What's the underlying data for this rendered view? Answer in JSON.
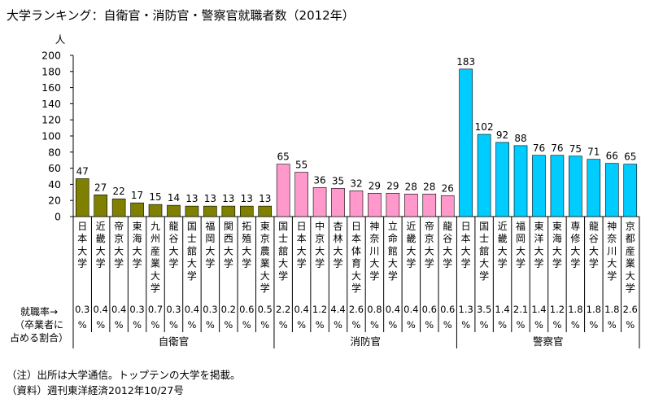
{
  "chart_data": {
    "type": "bar",
    "title": "大学ランキング：自衛官・消防官・警察官就職者数（2012年）",
    "unit": "人",
    "ylim": [
      0,
      200
    ],
    "yticks": [
      0,
      20,
      40,
      60,
      80,
      100,
      120,
      140,
      160,
      180,
      200
    ],
    "grid": false,
    "rate_label": [
      "就職率→",
      "（卒業者に",
      "占める割合）"
    ],
    "percent_sign": "%",
    "groups": [
      {
        "name": "自衛官",
        "color": "#808000",
        "categories": [
          "日本大学",
          "近畿大学",
          "帝京大学",
          "東海大学",
          "九州産業大学",
          "龍谷大学",
          "国士舘大学",
          "福岡大学",
          "関西大学",
          "拓殖大学",
          "東京農業大学"
        ],
        "values": [
          47,
          27,
          22,
          17,
          15,
          14,
          13,
          13,
          13,
          13,
          13
        ],
        "rates": [
          "0.3",
          "0.4",
          "0.4",
          "0.3",
          "0.7",
          "0.3",
          "0.4",
          "0.3",
          "0.2",
          "0.6",
          "0.5"
        ]
      },
      {
        "name": "消防官",
        "color": "#ff99cc",
        "categories": [
          "国士舘大学",
          "日本大学",
          "中京大学",
          "杏林大学",
          "日本体育大学",
          "神奈川大学",
          "立命館大学",
          "近畿大学",
          "帝京大学",
          "龍谷大学"
        ],
        "values": [
          65,
          55,
          36,
          35,
          32,
          29,
          29,
          28,
          28,
          26
        ],
        "rates": [
          "2.2",
          "0.4",
          "1.2",
          "4.4",
          "2.6",
          "0.8",
          "0.4",
          "0.4",
          "0.6",
          "0.6"
        ]
      },
      {
        "name": "警察官",
        "color": "#00ccff",
        "categories": [
          "日本大学",
          "国士舘大学",
          "近畿大学",
          "福岡大学",
          "東洋大学",
          "東海大学",
          "専修大学",
          "龍谷大学",
          "神奈川大学",
          "京都産業大学"
        ],
        "values": [
          183,
          102,
          92,
          88,
          76,
          76,
          75,
          71,
          66,
          65
        ],
        "rates": [
          "1.3",
          "3.5",
          "1.4",
          "2.1",
          "1.4",
          "1.2",
          "1.8",
          "1.8",
          "1.8",
          "2.6"
        ]
      }
    ]
  },
  "notes": {
    "note1": "（注）出所は大学通信。トップテンの大学を掲載。",
    "note2": "（資料）週刊東洋経済2012年10/27号"
  }
}
